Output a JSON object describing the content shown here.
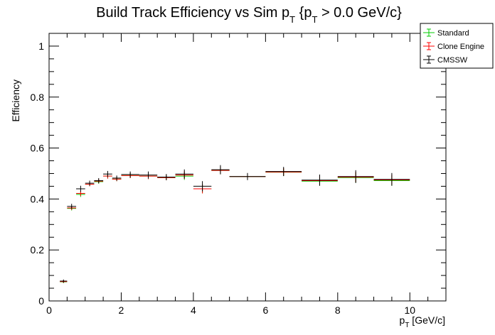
{
  "chart_data": {
    "type": "scatter",
    "title_main": "Build Track Efficiency vs Sim p",
    "title_sub1": "T",
    "title_mid": " {p",
    "title_sub2": "T",
    "title_end": " > 0.0 GeV/c}",
    "xlabel_main": "p",
    "xlabel_sub": "T",
    "xlabel_end": " [GeV/c]",
    "ylabel": "Efficiency",
    "xlim": [
      0,
      11
    ],
    "ylim": [
      0,
      1.05
    ],
    "x_tick_labels": [
      "0",
      "2",
      "4",
      "6",
      "8",
      "10"
    ],
    "y_tick_labels": [
      "0",
      "0.2",
      "0.4",
      "0.6",
      "0.8",
      "1"
    ],
    "grid": false,
    "legend_position": "top-right",
    "series": [
      {
        "name": "Standard",
        "color": "#00cc00",
        "points": [
          {
            "x0": 0.3,
            "x1": 0.5,
            "y": 0.075,
            "err": 0.005
          },
          {
            "x0": 0.5,
            "x1": 0.75,
            "y": 0.363,
            "err": 0.008
          },
          {
            "x0": 0.75,
            "x1": 1.0,
            "y": 0.418,
            "err": 0.01
          },
          {
            "x0": 1.0,
            "x1": 1.25,
            "y": 0.458,
            "err": 0.008
          },
          {
            "x0": 1.25,
            "x1": 1.5,
            "y": 0.468,
            "err": 0.008
          },
          {
            "x0": 1.5,
            "x1": 1.75,
            "y": 0.49,
            "err": 0.01
          },
          {
            "x0": 1.75,
            "x1": 2.0,
            "y": 0.478,
            "err": 0.008
          },
          {
            "x0": 2.0,
            "x1": 2.5,
            "y": 0.492,
            "err": 0.01
          },
          {
            "x0": 2.5,
            "x1": 3.0,
            "y": 0.49,
            "err": 0.012
          },
          {
            "x0": 3.0,
            "x1": 3.5,
            "y": 0.484,
            "err": 0.01
          },
          {
            "x0": 3.5,
            "x1": 4.0,
            "y": 0.49,
            "err": 0.015
          },
          {
            "x0": 4.0,
            "x1": 4.5,
            "y": 0.44,
            "err": 0.018
          },
          {
            "x0": 4.5,
            "x1": 5.0,
            "y": 0.512,
            "err": 0.015
          },
          {
            "x0": 5.0,
            "x1": 6.0,
            "y": 0.488,
            "err": 0.012
          },
          {
            "x0": 6.0,
            "x1": 7.0,
            "y": 0.505,
            "err": 0.015
          },
          {
            "x0": 7.0,
            "x1": 8.0,
            "y": 0.47,
            "err": 0.018
          },
          {
            "x0": 8.0,
            "x1": 9.0,
            "y": 0.484,
            "err": 0.02
          },
          {
            "x0": 9.0,
            "x1": 10.0,
            "y": 0.472,
            "err": 0.02
          }
        ]
      },
      {
        "name": "Clone Engine",
        "color": "#ff0000",
        "points": [
          {
            "x0": 0.3,
            "x1": 0.5,
            "y": 0.076,
            "err": 0.005
          },
          {
            "x0": 0.5,
            "x1": 0.75,
            "y": 0.365,
            "err": 0.008
          },
          {
            "x0": 0.75,
            "x1": 1.0,
            "y": 0.422,
            "err": 0.01
          },
          {
            "x0": 1.0,
            "x1": 1.25,
            "y": 0.458,
            "err": 0.008
          },
          {
            "x0": 1.25,
            "x1": 1.5,
            "y": 0.47,
            "err": 0.008
          },
          {
            "x0": 1.5,
            "x1": 1.75,
            "y": 0.49,
            "err": 0.01
          },
          {
            "x0": 1.75,
            "x1": 2.0,
            "y": 0.478,
            "err": 0.008
          },
          {
            "x0": 2.0,
            "x1": 2.5,
            "y": 0.492,
            "err": 0.01
          },
          {
            "x0": 2.5,
            "x1": 3.0,
            "y": 0.49,
            "err": 0.012
          },
          {
            "x0": 3.0,
            "x1": 3.5,
            "y": 0.484,
            "err": 0.01
          },
          {
            "x0": 3.5,
            "x1": 4.0,
            "y": 0.494,
            "err": 0.015
          },
          {
            "x0": 4.0,
            "x1": 4.5,
            "y": 0.44,
            "err": 0.018
          },
          {
            "x0": 4.5,
            "x1": 5.0,
            "y": 0.512,
            "err": 0.015
          },
          {
            "x0": 5.0,
            "x1": 6.0,
            "y": 0.488,
            "err": 0.012
          },
          {
            "x0": 6.0,
            "x1": 7.0,
            "y": 0.506,
            "err": 0.015
          },
          {
            "x0": 7.0,
            "x1": 8.0,
            "y": 0.472,
            "err": 0.018
          },
          {
            "x0": 8.0,
            "x1": 9.0,
            "y": 0.486,
            "err": 0.02
          },
          {
            "x0": 9.0,
            "x1": 10.0,
            "y": 0.475,
            "err": 0.02
          }
        ]
      },
      {
        "name": "CMSSW",
        "color": "#000000",
        "points": [
          {
            "x0": 0.3,
            "x1": 0.5,
            "y": 0.078,
            "err": 0.006
          },
          {
            "x0": 0.5,
            "x1": 0.75,
            "y": 0.371,
            "err": 0.01
          },
          {
            "x0": 0.75,
            "x1": 1.0,
            "y": 0.44,
            "err": 0.012
          },
          {
            "x0": 1.0,
            "x1": 1.25,
            "y": 0.462,
            "err": 0.01
          },
          {
            "x0": 1.25,
            "x1": 1.5,
            "y": 0.472,
            "err": 0.01
          },
          {
            "x0": 1.5,
            "x1": 1.75,
            "y": 0.498,
            "err": 0.012
          },
          {
            "x0": 1.75,
            "x1": 2.0,
            "y": 0.482,
            "err": 0.01
          },
          {
            "x0": 2.0,
            "x1": 2.5,
            "y": 0.496,
            "err": 0.012
          },
          {
            "x0": 2.5,
            "x1": 3.0,
            "y": 0.494,
            "err": 0.014
          },
          {
            "x0": 3.0,
            "x1": 3.5,
            "y": 0.486,
            "err": 0.012
          },
          {
            "x0": 3.5,
            "x1": 4.0,
            "y": 0.498,
            "err": 0.018
          },
          {
            "x0": 4.0,
            "x1": 4.5,
            "y": 0.45,
            "err": 0.02
          },
          {
            "x0": 4.5,
            "x1": 5.0,
            "y": 0.515,
            "err": 0.018
          },
          {
            "x0": 5.0,
            "x1": 6.0,
            "y": 0.488,
            "err": 0.014
          },
          {
            "x0": 6.0,
            "x1": 7.0,
            "y": 0.508,
            "err": 0.018
          },
          {
            "x0": 7.0,
            "x1": 8.0,
            "y": 0.474,
            "err": 0.022
          },
          {
            "x0": 8.0,
            "x1": 9.0,
            "y": 0.488,
            "err": 0.025
          },
          {
            "x0": 9.0,
            "x1": 10.0,
            "y": 0.477,
            "err": 0.025
          }
        ]
      }
    ]
  }
}
